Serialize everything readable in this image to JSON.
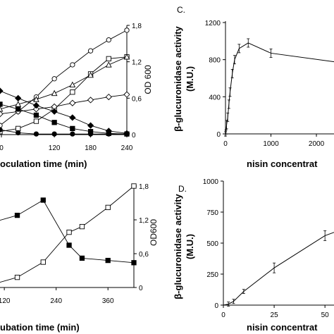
{
  "chart_data": [
    {
      "id": "A",
      "type": "line",
      "panel_label": "",
      "xlabel": "ocul­ation time (min)",
      "xlabel_visible": "oculation time (min)",
      "ylabel_right": "OD 600",
      "x_ticks": [
        "0",
        "120",
        "180",
        "240"
      ],
      "y_right_ticks": [
        "0",
        "0,6",
        "1,2",
        "1,8"
      ],
      "xlim": [
        30,
        240
      ],
      "ylim_right": [
        0,
        1.8
      ],
      "series": [
        {
          "marker": "open-circle",
          "x": [
            0,
            30,
            60,
            90,
            120,
            150,
            180,
            210,
            240
          ],
          "values": [
            0.02,
            0.15,
            0.38,
            0.62,
            0.92,
            1.15,
            1.38,
            1.56,
            1.72
          ]
        },
        {
          "marker": "open-square",
          "x": [
            0,
            30,
            60,
            90,
            120,
            150,
            180,
            210,
            240
          ],
          "values": [
            0.02,
            0.05,
            0.1,
            0.22,
            0.42,
            0.7,
            1.0,
            1.25,
            1.28
          ]
        },
        {
          "marker": "open-triangle",
          "x": [
            0,
            30,
            60,
            90,
            120,
            150,
            180,
            210,
            240
          ],
          "values": [
            0.35,
            0.42,
            0.5,
            0.58,
            0.68,
            0.82,
            0.98,
            1.15,
            1.28
          ]
        },
        {
          "marker": "open-diamond",
          "x": [
            0,
            30,
            60,
            90,
            120,
            150,
            180,
            210,
            240
          ],
          "values": [
            0.3,
            0.34,
            0.38,
            0.42,
            0.46,
            0.52,
            0.57,
            0.62,
            0.66
          ]
        },
        {
          "marker": "filled-diamond",
          "x": [
            0,
            30,
            60,
            90,
            120,
            150,
            180,
            210,
            240
          ],
          "values": [
            0.85,
            0.72,
            0.6,
            0.48,
            0.38,
            0.28,
            0.15,
            0.06,
            0.02
          ]
        },
        {
          "marker": "filled-square",
          "x": [
            0,
            30,
            60,
            90,
            120,
            150,
            180,
            210,
            240
          ],
          "values": [
            0.6,
            0.5,
            0.42,
            0.32,
            0.2,
            0.1,
            0.05,
            0.02,
            0.01
          ]
        },
        {
          "marker": "filled-circle",
          "x": [
            0,
            30,
            60,
            90,
            120,
            150,
            180,
            210,
            240
          ],
          "values": [
            0.25,
            0.08,
            0.03,
            0.01,
            0.01,
            0.01,
            0.01,
            0.01,
            0.01
          ]
        }
      ]
    },
    {
      "id": "C",
      "type": "line",
      "panel_label": "C.",
      "xlabel": "nisin concentrat",
      "ylabel": "β-glucuronidase activity (M.U.)",
      "ylabel_line1": "β-glucuronidase activity",
      "ylabel_line2": "(M.U.)",
      "x_ticks": [
        "0",
        "1000",
        "2000"
      ],
      "y_ticks": [
        "0",
        "400",
        "800",
        "1200"
      ],
      "xlim": [
        0,
        3100
      ],
      "ylim": [
        0,
        1200
      ],
      "series": [
        {
          "marker": "none",
          "x": [
            0,
            10,
            25,
            50,
            75,
            100,
            150,
            200,
            300,
            500,
            1000,
            3100
          ],
          "values": [
            0,
            20,
            100,
            180,
            320,
            450,
            650,
            800,
            920,
            980,
            870,
            730
          ]
        }
      ]
    },
    {
      "id": "B",
      "type": "line",
      "panel_label": "",
      "xlabel_visible": "ubation time (min)",
      "ylabel_right": "OD600",
      "x_ticks": [
        "120",
        "240",
        "360"
      ],
      "y_right_ticks": [
        "0",
        "0,6",
        "1,2",
        "1,8"
      ],
      "xlim": [
        110,
        420
      ],
      "ylim_right": [
        0,
        1.8
      ],
      "series": [
        {
          "marker": "filled-square",
          "x": [
            90,
            150,
            210,
            270,
            300,
            360,
            420
          ],
          "values": [
            1.15,
            1.28,
            1.55,
            0.75,
            0.52,
            0.48,
            0.44
          ]
        },
        {
          "marker": "open-square",
          "x": [
            90,
            150,
            210,
            270,
            300,
            360,
            420
          ],
          "values": [
            0.05,
            0.18,
            0.45,
            0.98,
            1.08,
            1.42,
            1.8
          ]
        }
      ]
    },
    {
      "id": "D",
      "type": "line",
      "panel_label": "D.",
      "xlabel": "nisin concentrat",
      "ylabel_line1": "β-glucuronidase activity",
      "ylabel_line2": "(M.U.)",
      "x_ticks": [
        "0",
        "25",
        "50"
      ],
      "y_ticks": [
        "0",
        "250",
        "500",
        "750",
        "1000"
      ],
      "xlim": [
        0,
        60
      ],
      "ylim": [
        0,
        1000
      ],
      "series": [
        {
          "marker": "none",
          "x": [
            0,
            2.5,
            5,
            10,
            25,
            50,
            60
          ],
          "values": [
            0,
            8,
            30,
            110,
            300,
            560,
            620
          ]
        }
      ]
    }
  ]
}
